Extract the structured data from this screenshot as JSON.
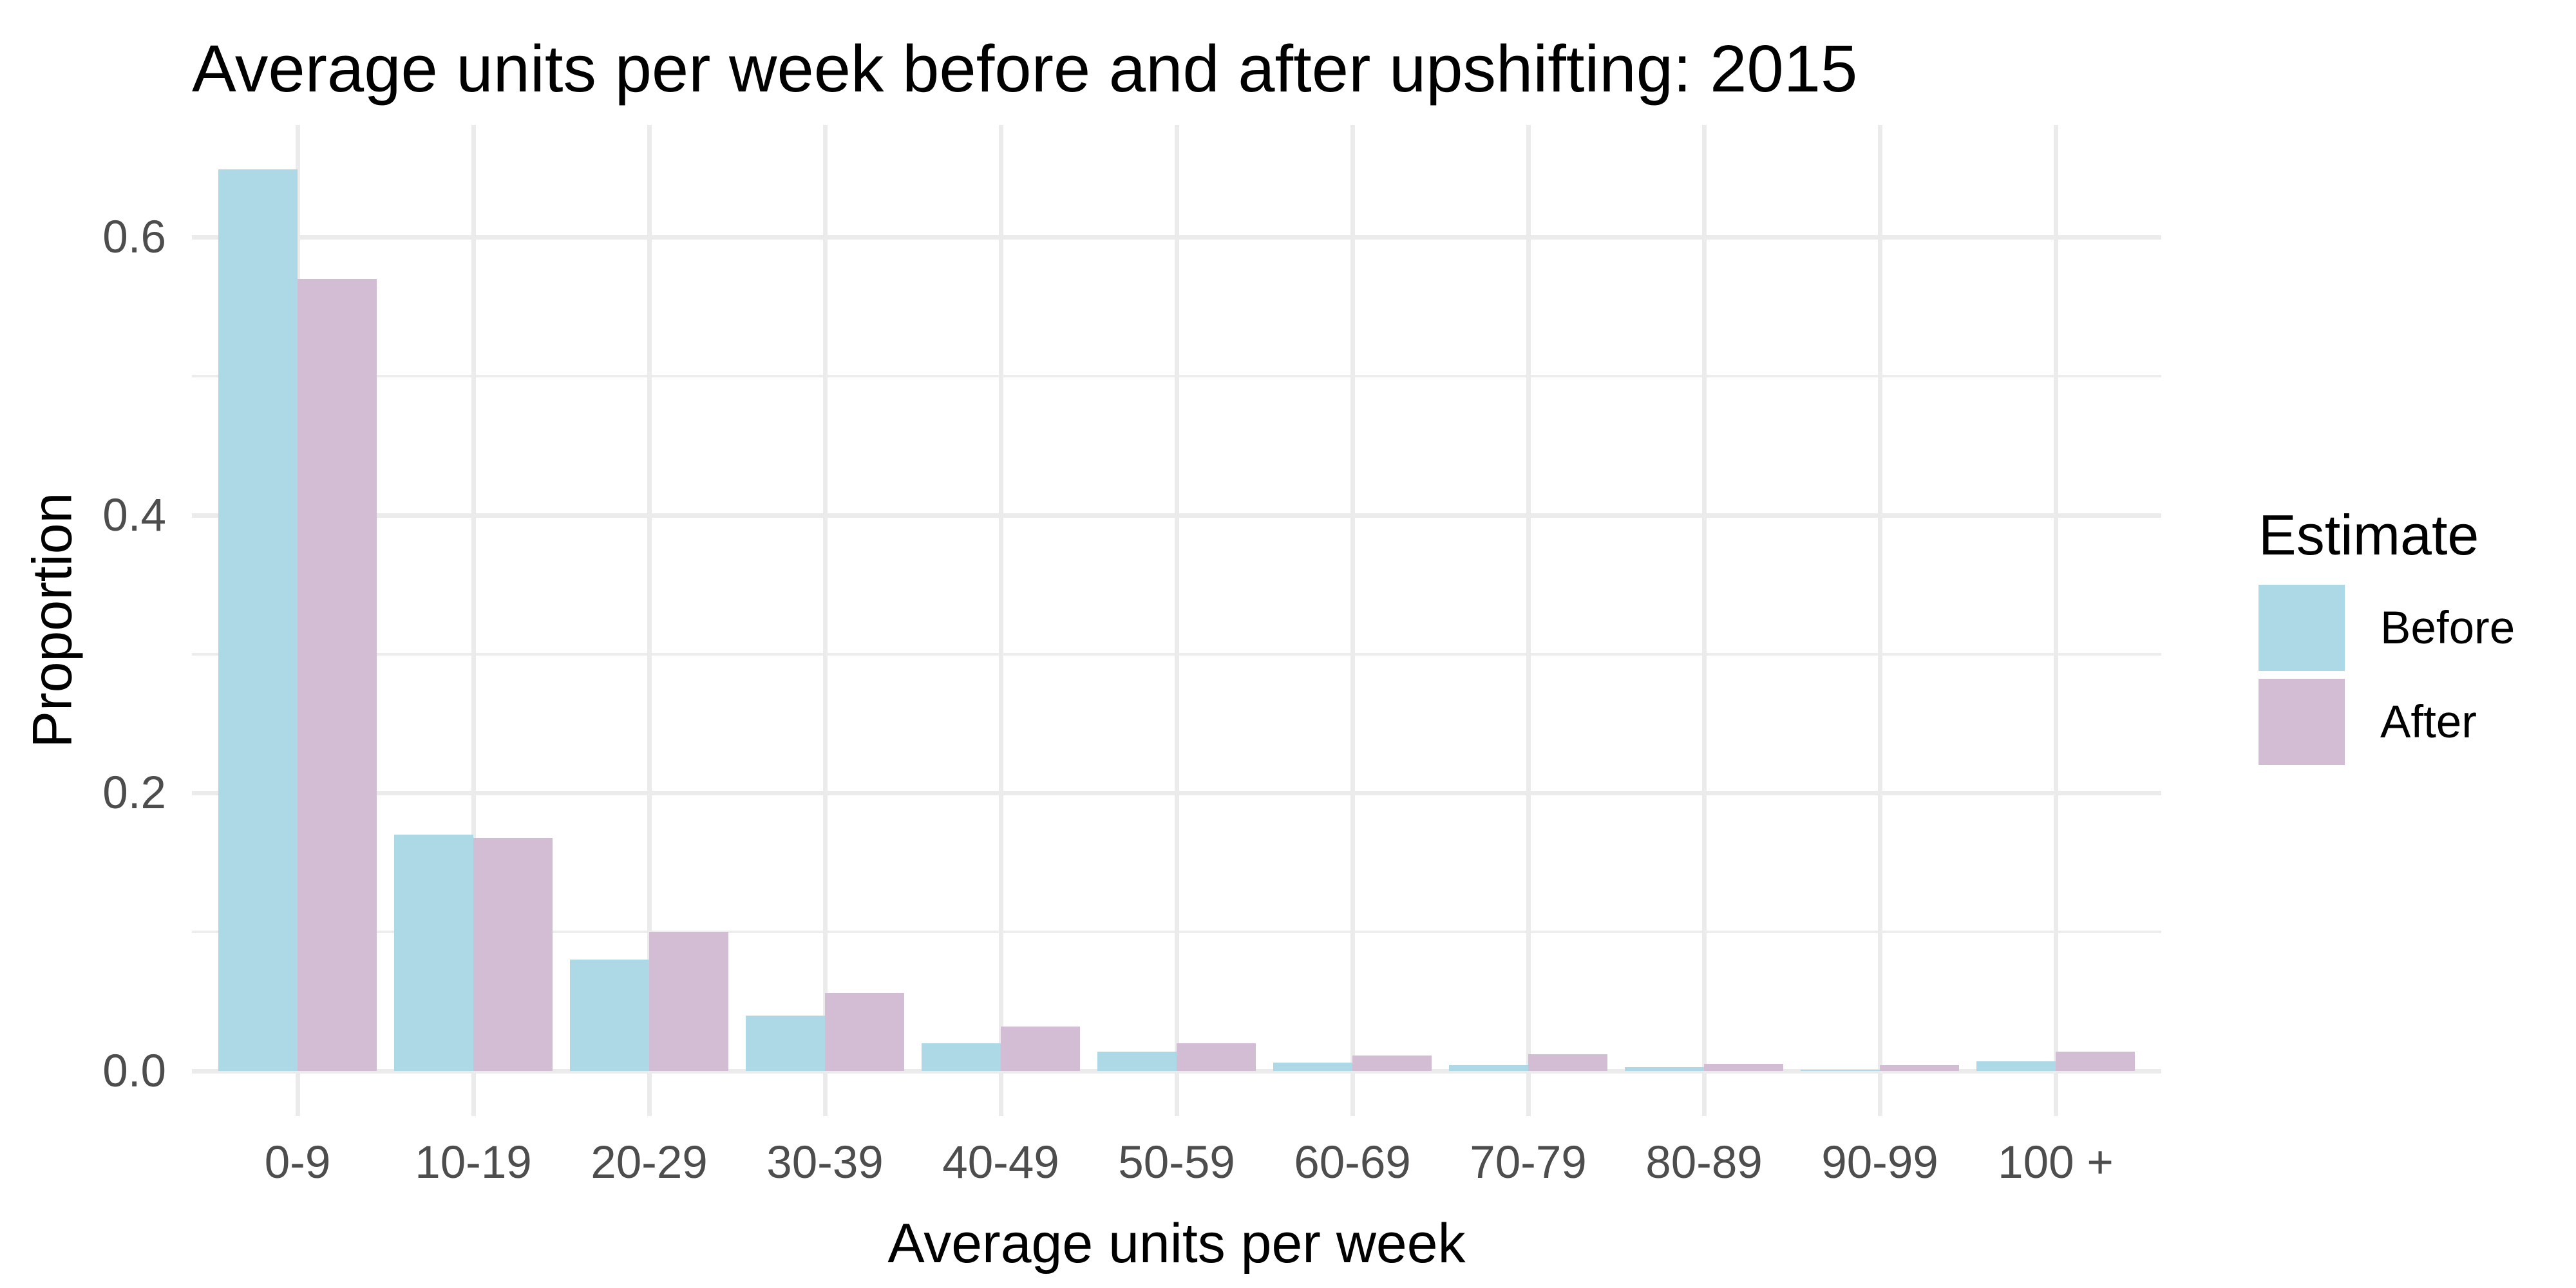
{
  "title": "Average units per week before and after upshifting: 2015",
  "chart_data": {
    "type": "bar",
    "title": "Average units per week before and after upshifting: 2015",
    "xlabel": "Average units per week",
    "ylabel": "Proportion",
    "categories": [
      "0-9",
      "10-19",
      "20-29",
      "30-39",
      "40-49",
      "50-59",
      "60-69",
      "70-79",
      "80-89",
      "90-99",
      "100 +"
    ],
    "series": [
      {
        "name": "Before",
        "color": "#ADD8E6",
        "values": [
          0.649,
          0.17,
          0.08,
          0.04,
          0.02,
          0.014,
          0.006,
          0.004,
          0.003,
          0.001,
          0.007
        ]
      },
      {
        "name": "After",
        "color": "#D3BDD5",
        "values": [
          0.57,
          0.168,
          0.1,
          0.056,
          0.032,
          0.02,
          0.011,
          0.012,
          0.005,
          0.004,
          0.014
        ]
      }
    ],
    "y_ticks": [
      0.0,
      0.2,
      0.4,
      0.6
    ],
    "y_tick_labels": [
      "0.0",
      "0.2",
      "0.4",
      "0.6"
    ],
    "y_minor_ticks": [
      0.1,
      0.3,
      0.5
    ],
    "ylim": [
      -0.032,
      0.681
    ],
    "grid": true,
    "legend_title": "Estimate",
    "legend_position": "right",
    "grid_color": "#EBEBEB",
    "axis_text_color": "#4D4D4D",
    "background": "#FFFFFF"
  },
  "legend": {
    "title": "Estimate",
    "items": [
      {
        "label": "Before",
        "color": "#ADD8E6"
      },
      {
        "label": "After",
        "color": "#D3BDD5"
      }
    ]
  }
}
